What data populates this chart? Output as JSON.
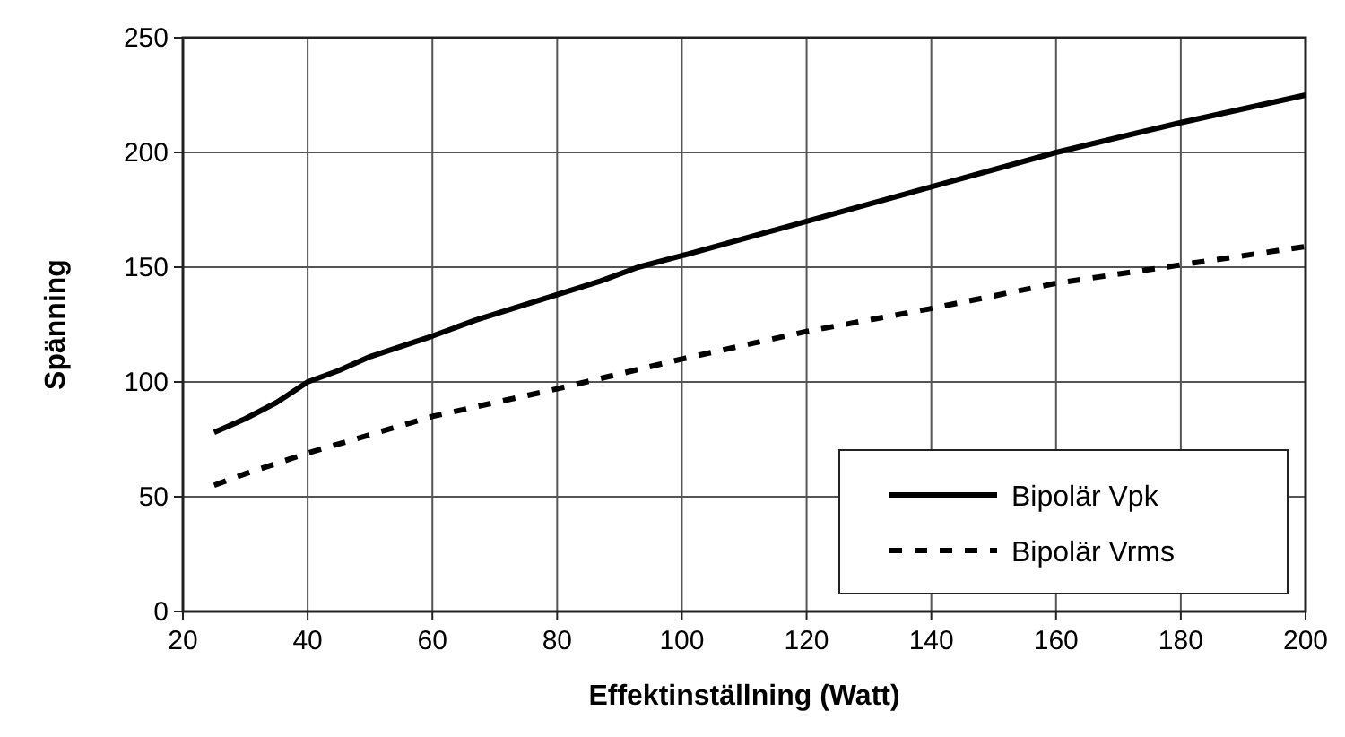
{
  "chart_data": {
    "type": "line",
    "xlabel": "Effektinställning (Watt)",
    "ylabel": "Spänning",
    "xlim": [
      20,
      200
    ],
    "xticks": [
      20,
      40,
      60,
      80,
      100,
      120,
      140,
      160,
      180,
      200
    ],
    "ylim": [
      0,
      250
    ],
    "yticks": [
      0,
      50,
      100,
      150,
      200,
      250
    ],
    "grid": true,
    "legend": "bottom right",
    "series": [
      {
        "name": "Bipolär Vpk",
        "color": "#000000",
        "line_style": "solid",
        "x": [
          25,
          30,
          35,
          40,
          45,
          50,
          60,
          67,
          80,
          87,
          93,
          100,
          120,
          140,
          160,
          180,
          200
        ],
        "values": [
          78,
          84,
          91,
          100,
          105,
          111,
          120,
          127,
          138,
          144,
          150,
          155,
          170,
          185,
          200,
          213,
          225
        ]
      },
      {
        "name": "Bipolär Vrms",
        "color": "#000000",
        "line_style": "dashed",
        "x": [
          25,
          30,
          40,
          50,
          60,
          80,
          100,
          120,
          140,
          160,
          180,
          200
        ],
        "values": [
          55,
          60,
          69,
          77,
          85,
          97,
          110,
          122,
          132,
          143,
          151,
          159
        ]
      }
    ]
  }
}
